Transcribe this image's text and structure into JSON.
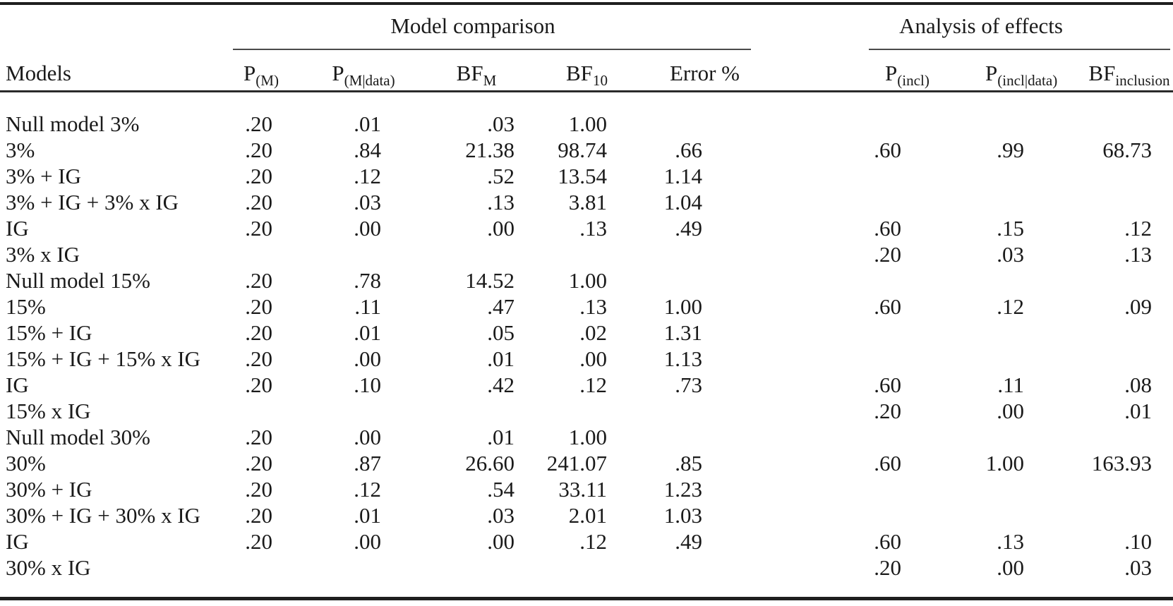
{
  "table": {
    "spanners": {
      "model_comparison": "Model comparison",
      "analysis_of_effects": "Analysis of effects"
    },
    "columns": [
      {
        "key": "model",
        "label": "Models"
      },
      {
        "key": "p_m",
        "base": "P",
        "sub": "(M)"
      },
      {
        "key": "p_m_data",
        "base": "P",
        "sub": "(M|data)"
      },
      {
        "key": "bf_m",
        "base": "BF",
        "sub": "M"
      },
      {
        "key": "bf_10",
        "base": "BF",
        "sub": "10"
      },
      {
        "key": "error_pct",
        "label": "Error %"
      },
      {
        "key": "p_incl",
        "base": "P",
        "sub": "(incl)"
      },
      {
        "key": "p_incl_data",
        "base": "P",
        "sub": "(incl|data)"
      },
      {
        "key": "bf_inclusion",
        "base": "BF",
        "sub": "inclusion"
      }
    ],
    "rows": [
      {
        "model": "Null model 3%",
        "p_m": ".20",
        "p_m_data": ".01",
        "bf_m": ".03",
        "bf_10": "1.00",
        "error_pct": "",
        "p_incl": "",
        "p_incl_data": "",
        "bf_inclusion": ""
      },
      {
        "model": "3%",
        "p_m": ".20",
        "p_m_data": ".84",
        "bf_m": "21.38",
        "bf_10": "98.74",
        "error_pct": ".66",
        "p_incl": ".60",
        "p_incl_data": ".99",
        "bf_inclusion": "68.73"
      },
      {
        "model": "3% + IG",
        "p_m": ".20",
        "p_m_data": ".12",
        "bf_m": ".52",
        "bf_10": "13.54",
        "error_pct": "1.14",
        "p_incl": "",
        "p_incl_data": "",
        "bf_inclusion": ""
      },
      {
        "model": "3% + IG + 3% x IG",
        "p_m": ".20",
        "p_m_data": ".03",
        "bf_m": ".13",
        "bf_10": "3.81",
        "error_pct": "1.04",
        "p_incl": "",
        "p_incl_data": "",
        "bf_inclusion": ""
      },
      {
        "model": "IG",
        "p_m": ".20",
        "p_m_data": ".00",
        "bf_m": ".00",
        "bf_10": ".13",
        "error_pct": ".49",
        "p_incl": ".60",
        "p_incl_data": ".15",
        "bf_inclusion": ".12"
      },
      {
        "model": "3% x IG",
        "p_m": "",
        "p_m_data": "",
        "bf_m": "",
        "bf_10": "",
        "error_pct": "",
        "p_incl": ".20",
        "p_incl_data": ".03",
        "bf_inclusion": ".13"
      },
      {
        "model": "Null model 15%",
        "p_m": ".20",
        "p_m_data": ".78",
        "bf_m": "14.52",
        "bf_10": "1.00",
        "error_pct": "",
        "p_incl": "",
        "p_incl_data": "",
        "bf_inclusion": ""
      },
      {
        "model": "15%",
        "p_m": ".20",
        "p_m_data": ".11",
        "bf_m": ".47",
        "bf_10": ".13",
        "error_pct": "1.00",
        "p_incl": ".60",
        "p_incl_data": ".12",
        "bf_inclusion": ".09"
      },
      {
        "model": "15% + IG",
        "p_m": ".20",
        "p_m_data": ".01",
        "bf_m": ".05",
        "bf_10": ".02",
        "error_pct": "1.31",
        "p_incl": "",
        "p_incl_data": "",
        "bf_inclusion": ""
      },
      {
        "model": "15% + IG + 15% x IG",
        "p_m": ".20",
        "p_m_data": ".00",
        "bf_m": ".01",
        "bf_10": ".00",
        "error_pct": "1.13",
        "p_incl": "",
        "p_incl_data": "",
        "bf_inclusion": ""
      },
      {
        "model": "IG",
        "p_m": ".20",
        "p_m_data": ".10",
        "bf_m": ".42",
        "bf_10": ".12",
        "error_pct": ".73",
        "p_incl": ".60",
        "p_incl_data": ".11",
        "bf_inclusion": ".08"
      },
      {
        "model": "15% x IG",
        "p_m": "",
        "p_m_data": "",
        "bf_m": "",
        "bf_10": "",
        "error_pct": "",
        "p_incl": ".20",
        "p_incl_data": ".00",
        "bf_inclusion": ".01"
      },
      {
        "model": "Null model 30%",
        "p_m": ".20",
        "p_m_data": ".00",
        "bf_m": ".01",
        "bf_10": "1.00",
        "error_pct": "",
        "p_incl": "",
        "p_incl_data": "",
        "bf_inclusion": ""
      },
      {
        "model": "30%",
        "p_m": ".20",
        "p_m_data": ".87",
        "bf_m": "26.60",
        "bf_10": "241.07",
        "error_pct": ".85",
        "p_incl": ".60",
        "p_incl_data": "1.00",
        "bf_inclusion": "163.93"
      },
      {
        "model": "30% + IG",
        "p_m": ".20",
        "p_m_data": ".12",
        "bf_m": ".54",
        "bf_10": "33.11",
        "error_pct": "1.23",
        "p_incl": "",
        "p_incl_data": "",
        "bf_inclusion": ""
      },
      {
        "model": "30% + IG + 30% x IG",
        "p_m": ".20",
        "p_m_data": ".01",
        "bf_m": ".03",
        "bf_10": "2.01",
        "error_pct": "1.03",
        "p_incl": "",
        "p_incl_data": "",
        "bf_inclusion": ""
      },
      {
        "model": "IG",
        "p_m": ".20",
        "p_m_data": ".00",
        "bf_m": ".00",
        "bf_10": ".12",
        "error_pct": ".49",
        "p_incl": ".60",
        "p_incl_data": ".13",
        "bf_inclusion": ".10"
      },
      {
        "model": "30% x IG",
        "p_m": "",
        "p_m_data": "",
        "bf_m": "",
        "bf_10": "",
        "error_pct": "",
        "p_incl": ".20",
        "p_incl_data": ".00",
        "bf_inclusion": ".03"
      }
    ]
  },
  "colors": {
    "text": "#1a1a1a",
    "rule_heavy": "#1f1f1f",
    "rule_light": "#4a4a4a",
    "background": "#ffffff"
  }
}
